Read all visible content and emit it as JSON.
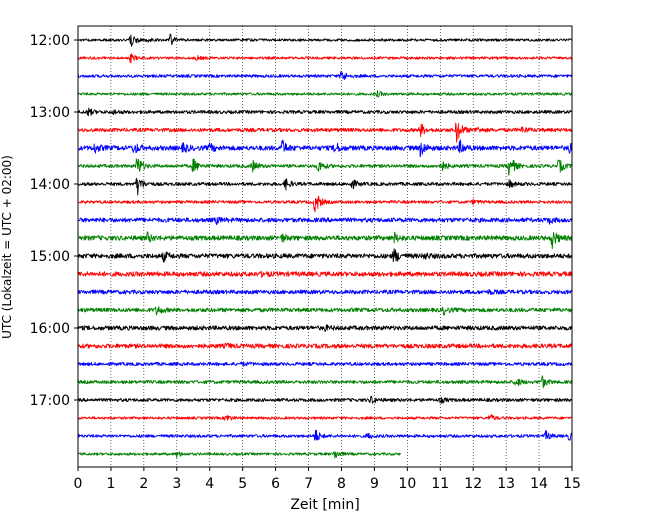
{
  "chart_data": {
    "type": "line",
    "subtype": "helicorder",
    "title": "",
    "xlabel": "Zeit  [min]",
    "ylabel": "UTC (Lokalzeit = UTC + 02:00)",
    "xlim": [
      0,
      15
    ],
    "x_ticks": [
      "0",
      "1",
      "2",
      "3",
      "4",
      "5",
      "6",
      "7",
      "8",
      "9",
      "10",
      "11",
      "12",
      "13",
      "14",
      "15"
    ],
    "y_ticks": [
      "12:00",
      "13:00",
      "14:00",
      "15:00",
      "16:00",
      "17:00"
    ],
    "grid_x": "dotted",
    "trace_colors": [
      "#000000",
      "#ff0000",
      "#0000ff",
      "#008000"
    ],
    "traces": [
      {
        "start": "12:00",
        "color": "#000000",
        "end_min": 15,
        "noise": 0.14,
        "events": [
          [
            1.6,
            0.9
          ],
          [
            2.8,
            0.6
          ],
          [
            2.1,
            0.2
          ]
        ]
      },
      {
        "start": "12:15",
        "color": "#ff0000",
        "end_min": 15,
        "noise": 0.14,
        "events": [
          [
            1.6,
            0.45
          ],
          [
            3.6,
            0.2
          ]
        ]
      },
      {
        "start": "12:30",
        "color": "#0000ff",
        "end_min": 15,
        "noise": 0.16,
        "events": [
          [
            8.0,
            0.7
          ]
        ]
      },
      {
        "start": "12:45",
        "color": "#008000",
        "end_min": 15,
        "noise": 0.14,
        "events": [
          [
            9.1,
            0.3
          ]
        ]
      },
      {
        "start": "13:00",
        "color": "#000000",
        "end_min": 15,
        "noise": 0.18,
        "events": [
          [
            0.3,
            0.4
          ],
          [
            1.1,
            0.2
          ]
        ]
      },
      {
        "start": "13:15",
        "color": "#ff0000",
        "end_min": 15,
        "noise": 0.2,
        "events": [
          [
            10.4,
            0.7
          ],
          [
            11.5,
            1.4
          ],
          [
            12.1,
            0.3
          ],
          [
            13.5,
            0.3
          ]
        ]
      },
      {
        "start": "13:30",
        "color": "#0000ff",
        "end_min": 15,
        "noise": 0.26,
        "events": [
          [
            0.5,
            0.5
          ],
          [
            1.7,
            0.6
          ],
          [
            3.2,
            0.5
          ],
          [
            4.0,
            0.4
          ],
          [
            6.2,
            0.8
          ],
          [
            7.8,
            0.6
          ],
          [
            10.4,
            0.9
          ],
          [
            11.6,
            0.7
          ],
          [
            14.9,
            0.5
          ]
        ]
      },
      {
        "start": "13:45",
        "color": "#008000",
        "end_min": 15,
        "noise": 0.18,
        "events": [
          [
            1.8,
            1.2
          ],
          [
            3.5,
            0.8
          ],
          [
            5.3,
            0.6
          ],
          [
            7.3,
            0.7
          ],
          [
            11.0,
            0.8
          ],
          [
            13.1,
            1.4
          ],
          [
            14.6,
            0.8
          ]
        ]
      },
      {
        "start": "14:00",
        "color": "#000000",
        "end_min": 15,
        "noise": 0.18,
        "events": [
          [
            1.8,
            1.2
          ],
          [
            6.3,
            0.6
          ],
          [
            8.3,
            0.6
          ],
          [
            13.1,
            0.4
          ]
        ]
      },
      {
        "start": "14:15",
        "color": "#ff0000",
        "end_min": 15,
        "noise": 0.16,
        "events": [
          [
            7.2,
            1.4
          ],
          [
            12.0,
            0.2
          ]
        ]
      },
      {
        "start": "14:30",
        "color": "#0000ff",
        "end_min": 15,
        "noise": 0.24,
        "events": [
          [
            4.2,
            0.3
          ],
          [
            14.3,
            0.3
          ]
        ]
      },
      {
        "start": "14:45",
        "color": "#008000",
        "end_min": 15,
        "noise": 0.26,
        "events": [
          [
            2.1,
            0.5
          ],
          [
            6.2,
            0.35
          ],
          [
            9.6,
            0.5
          ],
          [
            14.4,
            1.0
          ]
        ]
      },
      {
        "start": "15:00",
        "color": "#000000",
        "end_min": 15,
        "noise": 0.26,
        "events": [
          [
            2.6,
            0.5
          ],
          [
            9.6,
            0.8
          ],
          [
            10.5,
            0.3
          ]
        ]
      },
      {
        "start": "15:15",
        "color": "#ff0000",
        "end_min": 15,
        "noise": 0.26,
        "events": [
          [
            5.6,
            0.2
          ]
        ]
      },
      {
        "start": "15:30",
        "color": "#0000ff",
        "end_min": 15,
        "noise": 0.22,
        "events": [
          [
            12.5,
            0.2
          ]
        ]
      },
      {
        "start": "15:45",
        "color": "#008000",
        "end_min": 15,
        "noise": 0.22,
        "events": [
          [
            2.4,
            0.5
          ],
          [
            11.1,
            0.4
          ]
        ]
      },
      {
        "start": "16:00",
        "color": "#000000",
        "end_min": 15,
        "noise": 0.24,
        "events": [
          [
            7.5,
            0.2
          ]
        ]
      },
      {
        "start": "16:15",
        "color": "#ff0000",
        "end_min": 15,
        "noise": 0.24,
        "events": [
          [
            4.5,
            0.2
          ]
        ]
      },
      {
        "start": "16:30",
        "color": "#0000ff",
        "end_min": 15,
        "noise": 0.18,
        "events": [
          [
            5.0,
            0.15
          ]
        ]
      },
      {
        "start": "16:45",
        "color": "#008000",
        "end_min": 15,
        "noise": 0.18,
        "events": [
          [
            13.3,
            0.5
          ],
          [
            14.1,
            0.6
          ]
        ]
      },
      {
        "start": "17:00",
        "color": "#000000",
        "end_min": 15,
        "noise": 0.18,
        "events": [
          [
            8.9,
            0.4
          ],
          [
            11.0,
            0.3
          ]
        ]
      },
      {
        "start": "17:15",
        "color": "#ff0000",
        "end_min": 15,
        "noise": 0.14,
        "events": [
          [
            4.5,
            0.4
          ],
          [
            12.5,
            0.4
          ]
        ]
      },
      {
        "start": "17:30",
        "color": "#0000ff",
        "end_min": 15,
        "noise": 0.16,
        "events": [
          [
            7.2,
            0.8
          ],
          [
            8.8,
            0.3
          ],
          [
            14.2,
            0.5
          ],
          [
            14.9,
            0.4
          ]
        ]
      },
      {
        "start": "17:45",
        "color": "#008000",
        "end_min": 9.8,
        "noise": 0.14,
        "events": [
          [
            3.0,
            0.3
          ],
          [
            7.8,
            0.5
          ]
        ]
      }
    ]
  }
}
